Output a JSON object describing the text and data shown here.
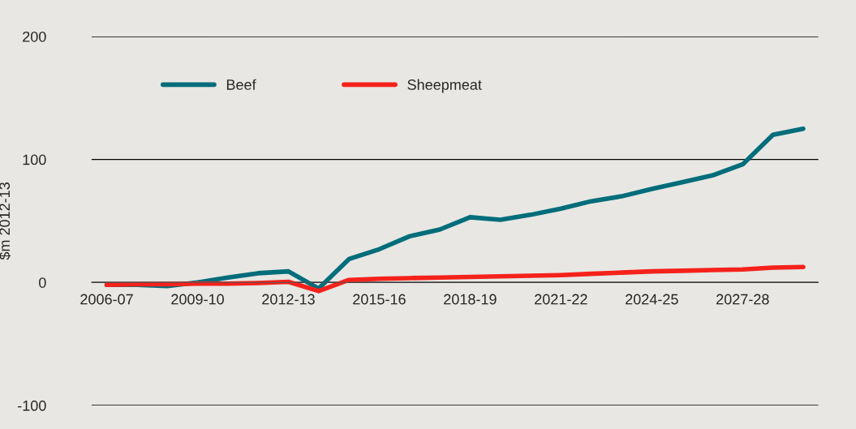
{
  "chart_data": {
    "type": "line",
    "ylabel": "$m 2012-13",
    "categories": [
      "2006-07",
      null,
      null,
      "2009-10",
      null,
      null,
      "2012-13",
      null,
      null,
      "2015-16",
      null,
      null,
      "2018-19",
      null,
      null,
      "2021-22",
      null,
      null,
      "2024-25",
      null,
      null,
      "2027-28",
      null,
      null
    ],
    "series": [
      {
        "name": "Beef",
        "color": "#006d7a",
        "values": [
          -2,
          -2,
          -3,
          0,
          4,
          7.5,
          9,
          -5,
          19,
          27,
          37.5,
          43,
          53,
          51,
          55,
          60,
          66,
          70,
          76,
          81.5,
          87,
          96,
          120,
          125
        ]
      },
      {
        "name": "Sheepmeat",
        "color": "#f5221b",
        "values": [
          -2,
          -1.5,
          -1.5,
          -1,
          -1,
          -0.5,
          0.5,
          -7,
          2,
          3,
          3.5,
          4,
          4.5,
          5,
          5.5,
          6,
          7,
          8,
          9,
          9.5,
          10,
          10.5,
          12,
          12.5
        ]
      }
    ],
    "ylim": [
      -100,
      200
    ],
    "yticks": [
      -100,
      0,
      100,
      200
    ],
    "grid": "y",
    "legend": "top left",
    "marker": "none",
    "line_style": "solid"
  }
}
